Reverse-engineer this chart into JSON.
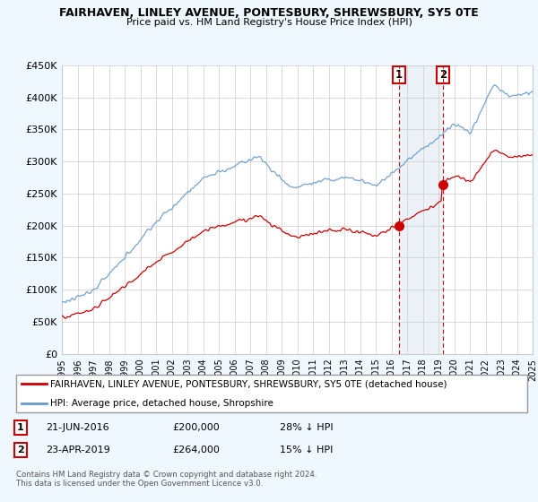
{
  "title": "FAIRHAVEN, LINLEY AVENUE, PONTESBURY, SHREWSBURY, SY5 0TE",
  "subtitle": "Price paid vs. HM Land Registry's House Price Index (HPI)",
  "legend_label_red": "FAIRHAVEN, LINLEY AVENUE, PONTESBURY, SHREWSBURY, SY5 0TE (detached house)",
  "legend_label_blue": "HPI: Average price, detached house, Shropshire",
  "transaction1_date": "21-JUN-2016",
  "transaction1_price": "£200,000",
  "transaction1_hpi": "28% ↓ HPI",
  "transaction2_date": "23-APR-2019",
  "transaction2_price": "£264,000",
  "transaction2_hpi": "15% ↓ HPI",
  "footer": "Contains HM Land Registry data © Crown copyright and database right 2024.\nThis data is licensed under the Open Government Licence v3.0.",
  "ylim": [
    0,
    450000
  ],
  "yticks": [
    0,
    50000,
    100000,
    150000,
    200000,
    250000,
    300000,
    350000,
    400000,
    450000
  ],
  "ytick_labels": [
    "£0",
    "£50K",
    "£100K",
    "£150K",
    "£200K",
    "£250K",
    "£300K",
    "£350K",
    "£400K",
    "£450K"
  ],
  "background_color": "#f0f8ff",
  "plot_bg_color": "#ffffff",
  "red_color": "#cc0000",
  "blue_color": "#6699cc",
  "grid_color": "#cccccc",
  "t1_year": 2016.46,
  "t1_price": 200000,
  "t2_year": 2019.29,
  "t2_price": 264000
}
